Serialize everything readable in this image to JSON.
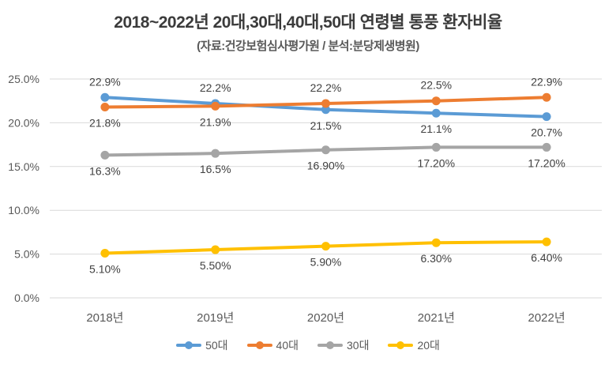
{
  "title": "2018~2022년 20대,30대,40대,50대 연령별 통풍 환자비율",
  "subtitle": "(자료:건강보험심사평가원 / 분석:분당제생병원)",
  "colors": {
    "gridline": "#d9d9d9",
    "axis_text": "#595959",
    "label_text": "#404040",
    "background": "#ffffff"
  },
  "chart_data": {
    "type": "line",
    "title": "2018~2022년 20대,30대,40대,50대 연령별 통풍 환자비율",
    "subtitle": "(자료:건강보험심사평가원 / 분석:분당제생병원)",
    "categories": [
      "2018년",
      "2019년",
      "2020년",
      "2021년",
      "2022년"
    ],
    "series": [
      {
        "name": "50대",
        "color": "#5B9BD5",
        "values": [
          22.9,
          22.2,
          21.5,
          21.1,
          20.7
        ],
        "labels": [
          "22.9%",
          "22.2%",
          "21.5%",
          "21.1%",
          "20.7%"
        ],
        "label_side": [
          "above",
          "above",
          "below",
          "below",
          "below"
        ]
      },
      {
        "name": "40대",
        "color": "#ED7D31",
        "values": [
          21.8,
          21.9,
          22.2,
          22.5,
          22.9
        ],
        "labels": [
          "21.8%",
          "21.9%",
          "22.2%",
          "22.5%",
          "22.9%"
        ],
        "label_side": [
          "below",
          "below",
          "above",
          "above",
          "above"
        ]
      },
      {
        "name": "30대",
        "color": "#A5A5A5",
        "values": [
          16.3,
          16.5,
          16.9,
          17.2,
          17.2
        ],
        "labels": [
          "16.3%",
          "16.5%",
          "16.90%",
          "17.20%",
          "17.20%"
        ],
        "label_side": [
          "below",
          "below",
          "below",
          "below",
          "below"
        ]
      },
      {
        "name": "20대",
        "color": "#FFC000",
        "values": [
          5.1,
          5.5,
          5.9,
          6.3,
          6.4
        ],
        "labels": [
          "5.10%",
          "5.50%",
          "5.90%",
          "6.30%",
          "6.40%"
        ],
        "label_side": [
          "below",
          "below",
          "below",
          "below",
          "below"
        ]
      }
    ],
    "y_axis": {
      "min": 0,
      "max": 25,
      "step": 5,
      "tick_labels": [
        "25.0%",
        "20.0%",
        "15.0%",
        "10.0%",
        "5.0%",
        "0.0%"
      ]
    },
    "grid": true,
    "legend_position": "bottom"
  }
}
